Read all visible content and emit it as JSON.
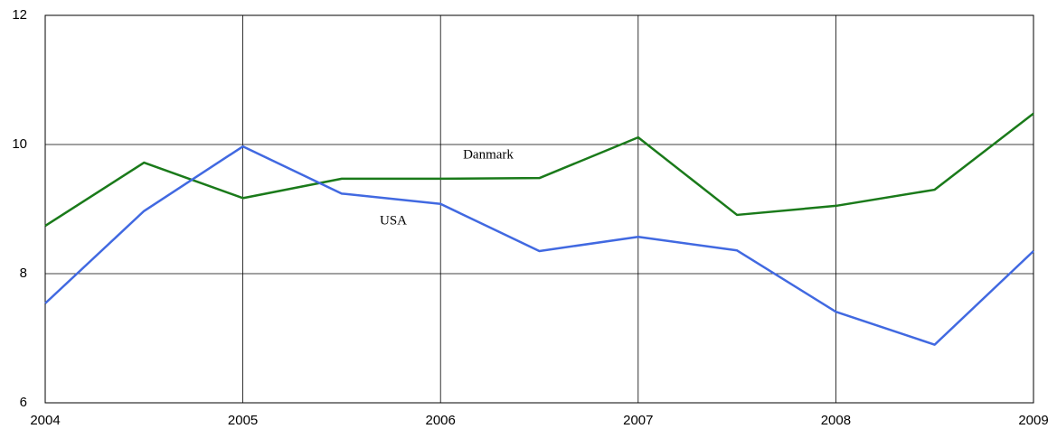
{
  "chart_data": {
    "type": "line",
    "x": [
      2004,
      2004.5,
      2005,
      2005.5,
      2006,
      2006.5,
      2007,
      2007.5,
      2008,
      2008.5,
      2009
    ],
    "series": [
      {
        "name": "Danmark",
        "color": "#1a7a1a",
        "values": [
          8.74,
          9.72,
          9.17,
          9.47,
          9.47,
          9.48,
          10.11,
          8.91,
          9.05,
          9.3,
          10.48
        ]
      },
      {
        "name": "USA",
        "color": "#4169e1",
        "values": [
          7.54,
          8.97,
          9.97,
          9.24,
          9.08,
          8.35,
          8.57,
          8.36,
          7.41,
          6.9,
          8.35
        ]
      }
    ],
    "xlim": [
      2004,
      2009
    ],
    "xticks": [
      2004,
      2005,
      2006,
      2007,
      2008,
      2009
    ],
    "ylim": [
      6,
      12
    ],
    "yticks": [
      6,
      8,
      10,
      12
    ],
    "grid": true
  }
}
